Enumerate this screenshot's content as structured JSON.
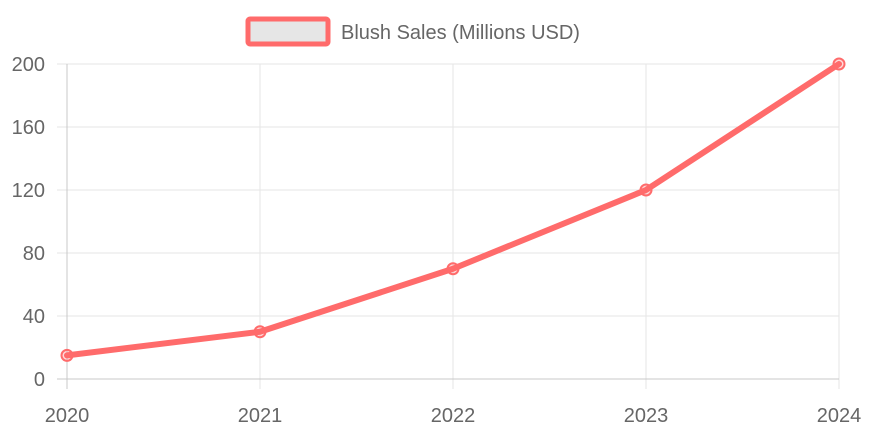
{
  "chart_data": {
    "type": "line",
    "categories": [
      "2020",
      "2021",
      "2022",
      "2023",
      "2024"
    ],
    "series": [
      {
        "name": "Blush Sales (Millions USD)",
        "values": [
          15,
          30,
          70,
          120,
          200
        ]
      }
    ],
    "ylim": [
      0,
      200
    ],
    "yticks": [
      "0",
      "40",
      "80",
      "120",
      "160",
      "200"
    ],
    "grid": true,
    "legend": "top-center",
    "colors": {
      "line": "#ff6b6b",
      "legend_fill": "#e6e6e6",
      "grid": "#e5e5e5",
      "axis": "#c8c8c8",
      "text": "#666666"
    }
  }
}
